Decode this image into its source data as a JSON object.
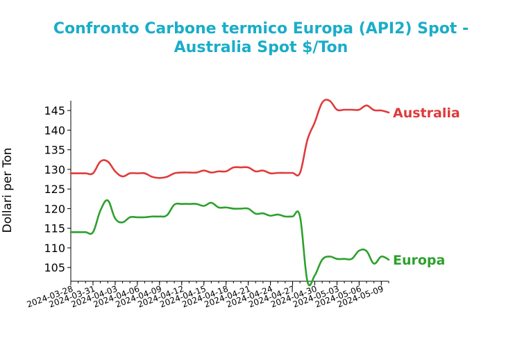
{
  "chart_data": {
    "type": "line",
    "title_line1": "Confronto Carbone termico Europa (API2) Spot -",
    "title_line2": "Australia Spot $/Ton",
    "ylabel": "Dollari per Ton",
    "xlabel": "",
    "ylim": [
      101.5,
      147.5
    ],
    "yticks": [
      105,
      110,
      115,
      120,
      125,
      130,
      135,
      140,
      145
    ],
    "xlim": [
      "2024-03-28",
      "2024-05-10"
    ],
    "xticks": [
      "2024-03-28",
      "2024-03-31",
      "2024-04-03",
      "2024-04-06",
      "2024-04-09",
      "2024-04-12",
      "2024-04-15",
      "2024-04-18",
      "2024-04-21",
      "2024-04-24",
      "2024-04-27",
      "2024-04-30",
      "2024-05-03",
      "2024-05-06",
      "2024-05-09"
    ],
    "grid": false,
    "legend": "none",
    "series": [
      {
        "name": "Australia",
        "color": "#e03a3a",
        "x": [
          "2024-03-28",
          "2024-03-29",
          "2024-03-30",
          "2024-03-31",
          "2024-04-01",
          "2024-04-02",
          "2024-04-03",
          "2024-04-04",
          "2024-04-05",
          "2024-04-06",
          "2024-04-07",
          "2024-04-08",
          "2024-04-09",
          "2024-04-10",
          "2024-04-11",
          "2024-04-12",
          "2024-04-13",
          "2024-04-14",
          "2024-04-15",
          "2024-04-16",
          "2024-04-17",
          "2024-04-18",
          "2024-04-19",
          "2024-04-20",
          "2024-04-21",
          "2024-04-22",
          "2024-04-23",
          "2024-04-24",
          "2024-04-25",
          "2024-04-26",
          "2024-04-27",
          "2024-04-28",
          "2024-04-29",
          "2024-04-30",
          "2024-05-01",
          "2024-05-02",
          "2024-05-03",
          "2024-05-04",
          "2024-05-05",
          "2024-05-06",
          "2024-05-07",
          "2024-05-08",
          "2024-05-09",
          "2024-05-10"
        ],
        "values": [
          129,
          129,
          129,
          129,
          132,
          132,
          129.5,
          128.2,
          129,
          129,
          129,
          128.1,
          127.8,
          128.1,
          129,
          129.2,
          129.2,
          129.2,
          129.7,
          129.2,
          129.5,
          129.5,
          130.5,
          130.5,
          130.5,
          129.5,
          129.7,
          129,
          129.1,
          129.1,
          129.1,
          129.1,
          137.5,
          142,
          147,
          147.5,
          145.2,
          145.2,
          145.2,
          145.2,
          146.3,
          145.1,
          145,
          144.5
        ]
      },
      {
        "name": "Europa",
        "color": "#2ca02c",
        "x": [
          "2024-03-28",
          "2024-03-29",
          "2024-03-30",
          "2024-03-31",
          "2024-04-01",
          "2024-04-02",
          "2024-04-03",
          "2024-04-04",
          "2024-04-05",
          "2024-04-06",
          "2024-04-07",
          "2024-04-08",
          "2024-04-09",
          "2024-04-10",
          "2024-04-11",
          "2024-04-12",
          "2024-04-13",
          "2024-04-14",
          "2024-04-15",
          "2024-04-16",
          "2024-04-17",
          "2024-04-18",
          "2024-04-19",
          "2024-04-20",
          "2024-04-21",
          "2024-04-22",
          "2024-04-23",
          "2024-04-24",
          "2024-04-25",
          "2024-04-26",
          "2024-04-27",
          "2024-04-28",
          "2024-04-29",
          "2024-04-30",
          "2024-05-01",
          "2024-05-02",
          "2024-05-03",
          "2024-05-04",
          "2024-05-05",
          "2024-05-06",
          "2024-05-07",
          "2024-05-08",
          "2024-05-09",
          "2024-05-10"
        ],
        "values": [
          114,
          114,
          114,
          114,
          119.5,
          122.1,
          117.5,
          116.5,
          117.8,
          117.8,
          117.8,
          118,
          118,
          118.3,
          121,
          121.2,
          121.2,
          121.2,
          120.7,
          121.5,
          120.3,
          120.3,
          120,
          120,
          120,
          118.7,
          118.8,
          118.2,
          118.5,
          118,
          118,
          118,
          101.5,
          103,
          107,
          107.8,
          107.2,
          107.2,
          107.2,
          109.3,
          109.2,
          106,
          107.8,
          107
        ]
      }
    ]
  },
  "colors": {
    "title": "#1aadc9",
    "axis": "#000000",
    "background": "#ffffff"
  }
}
